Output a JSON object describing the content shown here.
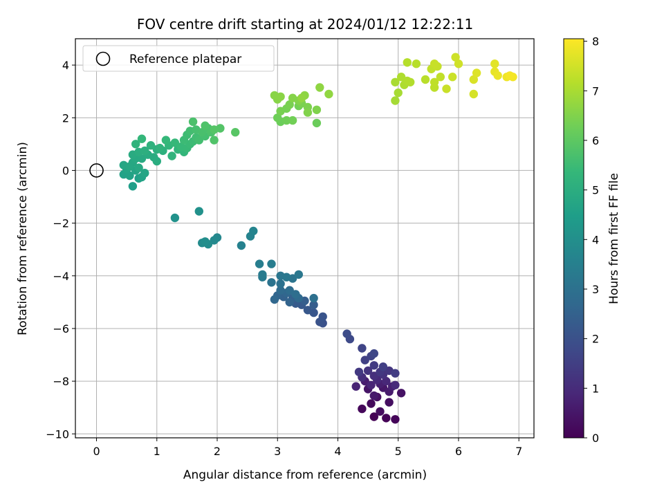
{
  "chart_data": {
    "type": "scatter",
    "title": "FOV centre drift starting at 2024/01/12 12:22:11",
    "xlabel": "Angular distance from reference (arcmin)",
    "ylabel": "Rotation from reference (arcmin)",
    "xlim": [
      -0.35,
      7.25
    ],
    "ylim": [
      -10.15,
      5.0
    ],
    "xticks": [
      0,
      1,
      2,
      3,
      4,
      5,
      6,
      7
    ],
    "yticks": [
      -10,
      -8,
      -6,
      -4,
      -2,
      0,
      2,
      4
    ],
    "grid": true,
    "legend": {
      "entries": [
        "Reference platepar"
      ],
      "placement": "top-left"
    },
    "colorbar": {
      "label": "Hours from first FF file",
      "range": [
        0,
        8.05
      ],
      "ticks": [
        0,
        1,
        2,
        3,
        4,
        5,
        6,
        7,
        8
      ],
      "colormap": "viridis"
    },
    "reference_point": {
      "x": 0,
      "y": 0
    },
    "points": [
      [
        4.6,
        -9.35,
        0.0
      ],
      [
        4.8,
        -9.4,
        0.05
      ],
      [
        4.95,
        -9.45,
        0.1
      ],
      [
        4.4,
        -9.05,
        0.15
      ],
      [
        4.55,
        -8.85,
        0.2
      ],
      [
        4.7,
        -9.15,
        0.25
      ],
      [
        4.85,
        -8.8,
        0.3
      ],
      [
        4.65,
        -8.6,
        0.35
      ],
      [
        5.05,
        -8.45,
        0.4
      ],
      [
        4.5,
        -8.3,
        0.45
      ],
      [
        4.75,
        -8.25,
        0.5
      ],
      [
        4.6,
        -8.55,
        0.55
      ],
      [
        4.85,
        -8.4,
        0.6
      ],
      [
        4.45,
        -8.0,
        0.65
      ],
      [
        4.7,
        -8.1,
        0.7
      ],
      [
        4.9,
        -8.2,
        0.75
      ],
      [
        4.3,
        -8.2,
        0.8
      ],
      [
        4.55,
        -8.15,
        0.85
      ],
      [
        4.8,
        -8.0,
        0.9
      ],
      [
        4.65,
        -7.95,
        0.95
      ],
      [
        4.95,
        -8.15,
        1.0
      ],
      [
        4.4,
        -7.85,
        1.05
      ],
      [
        4.6,
        -7.8,
        1.1
      ],
      [
        4.75,
        -7.75,
        1.15
      ],
      [
        4.5,
        -7.6,
        1.2
      ],
      [
        4.85,
        -7.6,
        1.25
      ],
      [
        4.7,
        -7.65,
        1.3
      ],
      [
        4.35,
        -7.65,
        1.35
      ],
      [
        4.6,
        -7.4,
        1.4
      ],
      [
        4.95,
        -7.7,
        1.45
      ],
      [
        4.75,
        -7.45,
        1.5
      ],
      [
        4.45,
        -7.2,
        1.55
      ],
      [
        4.55,
        -7.05,
        1.6
      ],
      [
        4.4,
        -6.75,
        1.65
      ],
      [
        4.6,
        -6.95,
        1.7
      ],
      [
        4.2,
        -6.4,
        1.8
      ],
      [
        4.15,
        -6.2,
        1.85
      ],
      [
        3.75,
        -5.8,
        2.0
      ],
      [
        3.7,
        -5.75,
        2.05
      ],
      [
        3.75,
        -5.55,
        2.1
      ],
      [
        3.6,
        -5.4,
        2.15
      ],
      [
        3.5,
        -5.3,
        2.2
      ],
      [
        3.4,
        -5.1,
        2.25
      ],
      [
        3.3,
        -5.05,
        2.3
      ],
      [
        3.6,
        -5.1,
        2.35
      ],
      [
        3.45,
        -4.95,
        2.4
      ],
      [
        3.25,
        -4.85,
        2.45
      ],
      [
        3.1,
        -4.8,
        2.5
      ],
      [
        3.2,
        -5.0,
        2.55
      ],
      [
        3.0,
        -4.75,
        2.6
      ],
      [
        3.15,
        -4.65,
        2.65
      ],
      [
        2.95,
        -4.9,
        2.7
      ],
      [
        3.35,
        -4.85,
        2.75
      ],
      [
        3.05,
        -4.55,
        2.8
      ],
      [
        3.2,
        -4.55,
        2.85
      ],
      [
        3.3,
        -4.7,
        2.9
      ],
      [
        3.6,
        -4.85,
        2.95
      ],
      [
        3.05,
        -4.3,
        3.0
      ],
      [
        2.9,
        -4.25,
        3.05
      ],
      [
        3.25,
        -4.1,
        3.1
      ],
      [
        3.05,
        -4.0,
        3.15
      ],
      [
        3.35,
        -3.95,
        3.2
      ],
      [
        3.15,
        -4.05,
        3.25
      ],
      [
        2.75,
        -4.05,
        3.3
      ],
      [
        2.75,
        -3.95,
        3.35
      ],
      [
        2.9,
        -3.55,
        3.4
      ],
      [
        2.7,
        -3.55,
        3.45
      ],
      [
        2.4,
        -2.85,
        3.55
      ],
      [
        2.55,
        -2.5,
        3.6
      ],
      [
        2.6,
        -2.3,
        3.65
      ],
      [
        2.0,
        -2.55,
        3.75
      ],
      [
        1.95,
        -2.65,
        3.8
      ],
      [
        1.75,
        -2.75,
        3.85
      ],
      [
        1.85,
        -2.8,
        3.9
      ],
      [
        1.8,
        -2.7,
        3.95
      ],
      [
        1.7,
        -1.55,
        4.05
      ],
      [
        1.3,
        -1.8,
        4.1
      ],
      [
        0.6,
        -0.6,
        4.5
      ],
      [
        0.7,
        -0.3,
        4.55
      ],
      [
        0.45,
        -0.15,
        4.6
      ],
      [
        0.55,
        -0.2,
        4.62
      ],
      [
        0.75,
        -0.25,
        4.65
      ],
      [
        0.5,
        0.05,
        4.68
      ],
      [
        0.65,
        0.0,
        4.7
      ],
      [
        0.8,
        -0.1,
        4.72
      ],
      [
        0.45,
        0.2,
        4.75
      ],
      [
        0.6,
        0.3,
        4.78
      ],
      [
        0.55,
        0.15,
        4.8
      ],
      [
        0.7,
        0.1,
        4.82
      ],
      [
        0.65,
        0.45,
        4.85
      ],
      [
        0.75,
        0.45,
        4.88
      ],
      [
        0.6,
        0.6,
        4.9
      ],
      [
        0.85,
        0.6,
        4.92
      ],
      [
        0.95,
        0.5,
        4.95
      ],
      [
        1.0,
        0.35,
        4.98
      ],
      [
        0.7,
        0.7,
        5.0
      ],
      [
        0.8,
        0.75,
        5.05
      ],
      [
        1.0,
        0.8,
        5.08
      ],
      [
        1.1,
        0.75,
        5.1
      ],
      [
        0.9,
        0.95,
        5.15
      ],
      [
        0.65,
        1.0,
        5.18
      ],
      [
        1.05,
        0.85,
        5.2
      ],
      [
        1.25,
        0.55,
        5.22
      ],
      [
        1.35,
        0.8,
        5.25
      ],
      [
        1.2,
        0.95,
        5.28
      ],
      [
        1.45,
        0.7,
        5.3
      ],
      [
        0.75,
        1.2,
        5.32
      ],
      [
        1.15,
        1.15,
        5.35
      ],
      [
        1.3,
        1.05,
        5.38
      ],
      [
        1.4,
        0.9,
        5.4
      ],
      [
        1.5,
        0.85,
        5.42
      ],
      [
        1.55,
        1.0,
        5.45
      ],
      [
        1.45,
        1.15,
        5.48
      ],
      [
        1.6,
        1.1,
        5.5
      ],
      [
        1.5,
        1.35,
        5.52
      ],
      [
        1.65,
        1.25,
        5.55
      ],
      [
        1.55,
        1.5,
        5.58
      ],
      [
        1.7,
        1.15,
        5.6
      ],
      [
        1.8,
        1.3,
        5.62
      ],
      [
        1.65,
        1.55,
        5.65
      ],
      [
        1.75,
        1.45,
        5.68
      ],
      [
        1.85,
        1.6,
        5.7
      ],
      [
        1.6,
        1.85,
        5.72
      ],
      [
        1.9,
        1.45,
        5.75
      ],
      [
        1.8,
        1.7,
        5.78
      ],
      [
        1.95,
        1.15,
        5.8
      ],
      [
        2.05,
        1.6,
        5.85
      ],
      [
        1.95,
        1.55,
        5.88
      ],
      [
        2.3,
        1.45,
        5.92
      ],
      [
        3.65,
        1.8,
        6.2
      ],
      [
        3.05,
        1.85,
        6.22
      ],
      [
        3.0,
        2.0,
        6.25
      ],
      [
        3.15,
        1.9,
        6.28
      ],
      [
        3.25,
        1.9,
        6.3
      ],
      [
        3.35,
        2.45,
        6.32
      ],
      [
        3.15,
        2.35,
        6.35
      ],
      [
        3.05,
        2.25,
        6.38
      ],
      [
        3.2,
        2.5,
        6.4
      ],
      [
        3.4,
        2.55,
        6.42
      ],
      [
        3.5,
        2.4,
        6.45
      ],
      [
        3.65,
        2.3,
        6.48
      ],
      [
        3.5,
        2.2,
        6.5
      ],
      [
        3.35,
        2.65,
        6.52
      ],
      [
        3.25,
        2.75,
        6.55
      ],
      [
        3.0,
        2.7,
        6.58
      ],
      [
        2.95,
        2.85,
        6.6
      ],
      [
        3.05,
        2.8,
        6.62
      ],
      [
        3.45,
        2.85,
        6.65
      ],
      [
        3.7,
        3.15,
        6.68
      ],
      [
        3.85,
        2.9,
        6.7
      ],
      [
        3.4,
        2.75,
        6.72
      ],
      [
        4.95,
        2.65,
        6.95
      ],
      [
        5.0,
        2.95,
        6.98
      ],
      [
        4.95,
        3.35,
        7.0
      ],
      [
        5.1,
        3.25,
        7.05
      ],
      [
        5.05,
        3.55,
        7.08
      ],
      [
        5.15,
        3.4,
        7.1
      ],
      [
        5.2,
        3.35,
        7.12
      ],
      [
        5.15,
        4.1,
        7.15
      ],
      [
        5.3,
        4.05,
        7.18
      ],
      [
        5.45,
        3.45,
        7.2
      ],
      [
        5.6,
        3.15,
        7.25
      ],
      [
        5.6,
        3.35,
        7.28
      ],
      [
        5.7,
        3.55,
        7.3
      ],
      [
        5.55,
        3.85,
        7.32
      ],
      [
        5.65,
        3.95,
        7.35
      ],
      [
        5.6,
        4.05,
        7.38
      ],
      [
        5.8,
        3.1,
        7.4
      ],
      [
        5.9,
        3.55,
        7.42
      ],
      [
        5.95,
        4.3,
        7.45
      ],
      [
        6.0,
        4.05,
        7.48
      ],
      [
        6.25,
        2.9,
        7.55
      ],
      [
        6.25,
        3.45,
        7.6
      ],
      [
        6.3,
        3.7,
        7.65
      ],
      [
        6.6,
        4.05,
        7.72
      ],
      [
        6.6,
        3.75,
        7.78
      ],
      [
        6.65,
        3.6,
        7.82
      ],
      [
        6.8,
        3.55,
        7.88
      ],
      [
        6.9,
        3.55,
        7.92
      ],
      [
        6.85,
        3.6,
        7.95
      ]
    ]
  }
}
